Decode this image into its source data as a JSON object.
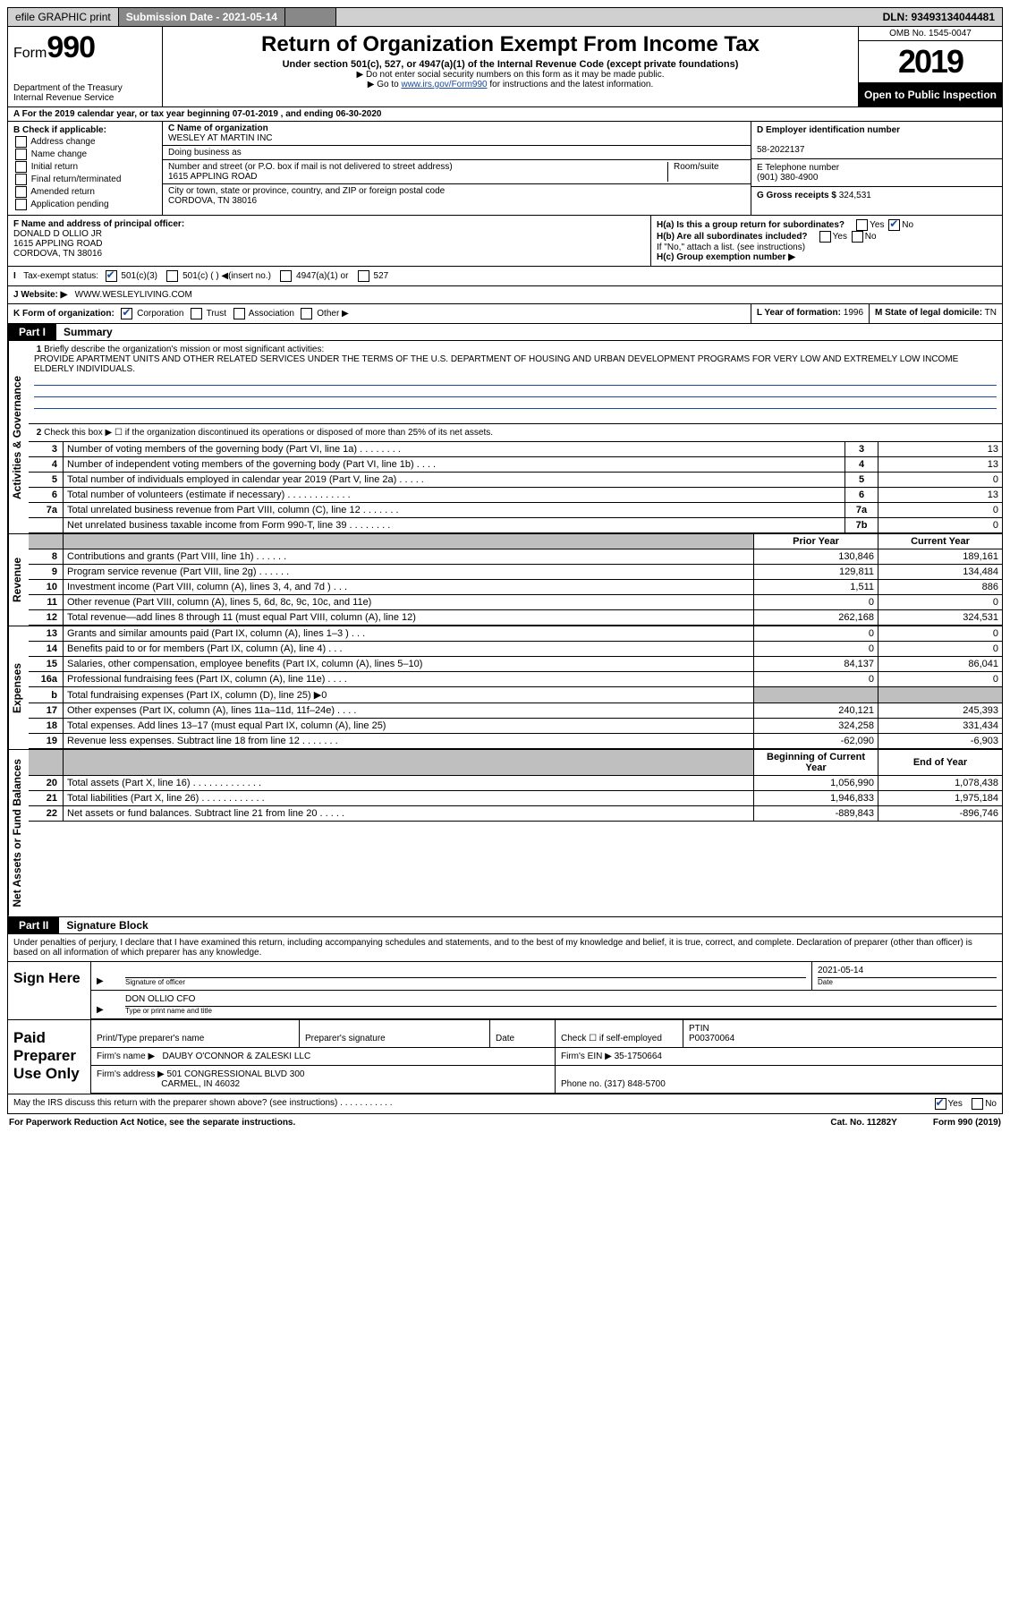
{
  "topbar": {
    "efile": "efile GRAPHIC print",
    "submission_label": "Submission Date - 2021-05-14",
    "dln": "DLN: 93493134044481"
  },
  "header": {
    "form_prefix": "Form",
    "form_number": "990",
    "dept": "Department of the Treasury",
    "irs": "Internal Revenue Service",
    "title": "Return of Organization Exempt From Income Tax",
    "subtitle": "Under section 501(c), 527, or 4947(a)(1) of the Internal Revenue Code (except private foundations)",
    "note1": "▶ Do not enter social security numbers on this form as it may be made public.",
    "note2_pre": "▶ Go to ",
    "note2_link": "www.irs.gov/Form990",
    "note2_post": " for instructions and the latest information.",
    "omb": "OMB No. 1545-0047",
    "year": "2019",
    "open": "Open to Public Inspection"
  },
  "row_a": "A For the 2019 calendar year, or tax year beginning 07-01-2019    , and ending 06-30-2020",
  "col_b": {
    "title": "B Check if applicable:",
    "items": [
      "Address change",
      "Name change",
      "Initial return",
      "Final return/terminated",
      "Amended return",
      "Application pending"
    ]
  },
  "c": {
    "name_lbl": "C Name of organization",
    "name": "WESLEY AT MARTIN INC",
    "dba_lbl": "Doing business as",
    "addr_lbl": "Number and street (or P.O. box if mail is not delivered to street address)",
    "room_lbl": "Room/suite",
    "addr": "1615 APPLING ROAD",
    "city_lbl": "City or town, state or province, country, and ZIP or foreign postal code",
    "city": "CORDOVA, TN  38016"
  },
  "d": {
    "lbl": "D Employer identification number",
    "val": "58-2022137"
  },
  "e": {
    "lbl": "E Telephone number",
    "val": "(901) 380-4900"
  },
  "g": {
    "lbl": "G Gross receipts $",
    "val": "324,531"
  },
  "f": {
    "lbl": "F  Name and address of principal officer:",
    "name": "DONALD D OLLIO JR",
    "addr1": "1615 APPLING ROAD",
    "addr2": "CORDOVA, TN  38016"
  },
  "h": {
    "a_lbl": "H(a)  Is this a group return for subordinates?",
    "a_yes": "Yes",
    "a_no": "No",
    "b_lbl": "H(b)  Are all subordinates included?",
    "b_yes": "Yes",
    "b_no": "No",
    "b_note": "If \"No,\" attach a list. (see instructions)",
    "c_lbl": "H(c)  Group exemption number ▶"
  },
  "i": {
    "lbl": "Tax-exempt status:",
    "opts": [
      "501(c)(3)",
      "501(c) (  ) ◀(insert no.)",
      "4947(a)(1) or",
      "527"
    ]
  },
  "j": {
    "lbl": "J   Website: ▶",
    "val": "WWW.WESLEYLIVING.COM"
  },
  "k": {
    "lbl": "K Form of organization:",
    "opts": [
      "Corporation",
      "Trust",
      "Association",
      "Other ▶"
    ]
  },
  "l": {
    "lbl": "L Year of formation:",
    "val": "1996"
  },
  "m": {
    "lbl": "M State of legal domicile:",
    "val": "TN"
  },
  "parts": {
    "p1_label": "Part I",
    "p1_title": "Summary",
    "p2_label": "Part II",
    "p2_title": "Signature Block"
  },
  "summary": {
    "line1_lbl": "Briefly describe the organization's mission or most significant activities:",
    "mission": "PROVIDE APARTMENT UNITS AND OTHER RELATED SERVICES UNDER THE TERMS OF THE U.S. DEPARTMENT OF HOUSING AND URBAN DEVELOPMENT PROGRAMS FOR VERY LOW AND EXTREMELY LOW INCOME ELDERLY INDIVIDUALS.",
    "line2": "Check this box ▶ ☐   if the organization discontinued its operations or disposed of more than 25% of its net assets.",
    "tabs": {
      "gov": "Activities & Governance",
      "rev": "Revenue",
      "exp": "Expenses",
      "net": "Net Assets or Fund Balances"
    },
    "cols": {
      "prior": "Prior Year",
      "current": "Current Year",
      "boy": "Beginning of Current Year",
      "eoy": "End of Year"
    },
    "gov_lines": [
      {
        "n": "3",
        "d": "Number of voting members of the governing body (Part VI, line 1a)   .    .    .    .    .    .    .    .",
        "b": "3",
        "v": "13"
      },
      {
        "n": "4",
        "d": "Number of independent voting members of the governing body (Part VI, line 1b)   .    .    .    .",
        "b": "4",
        "v": "13"
      },
      {
        "n": "5",
        "d": "Total number of individuals employed in calendar year 2019 (Part V, line 2a)   .    .    .    .    .",
        "b": "5",
        "v": "0"
      },
      {
        "n": "6",
        "d": "Total number of volunteers (estimate if necessary)    .    .    .    .    .    .    .    .    .    .    .    .",
        "b": "6",
        "v": "13"
      },
      {
        "n": "7a",
        "d": "Total unrelated business revenue from Part VIII, column (C), line 12   .    .    .    .    .    .    .",
        "b": "7a",
        "v": "0"
      },
      {
        "n": "",
        "d": "Net unrelated business taxable income from Form 990-T, line 39    .    .    .    .    .    .    .    .",
        "b": "7b",
        "v": "0"
      }
    ],
    "rev_lines": [
      {
        "n": "8",
        "d": "Contributions and grants (Part VIII, line 1h)    .    .    .    .    .    .",
        "p": "130,846",
        "c": "189,161"
      },
      {
        "n": "9",
        "d": "Program service revenue (Part VIII, line 2g)    .    .    .    .    .    .",
        "p": "129,811",
        "c": "134,484"
      },
      {
        "n": "10",
        "d": "Investment income (Part VIII, column (A), lines 3, 4, and 7d )    .    .    .",
        "p": "1,511",
        "c": "886"
      },
      {
        "n": "11",
        "d": "Other revenue (Part VIII, column (A), lines 5, 6d, 8c, 9c, 10c, and 11e)",
        "p": "0",
        "c": "0"
      },
      {
        "n": "12",
        "d": "Total revenue—add lines 8 through 11 (must equal Part VIII, column (A), line 12)",
        "p": "262,168",
        "c": "324,531"
      }
    ],
    "exp_lines": [
      {
        "n": "13",
        "d": "Grants and similar amounts paid (Part IX, column (A), lines 1–3 )   .    .    .",
        "p": "0",
        "c": "0"
      },
      {
        "n": "14",
        "d": "Benefits paid to or for members (Part IX, column (A), line 4)   .    .    .",
        "p": "0",
        "c": "0"
      },
      {
        "n": "15",
        "d": "Salaries, other compensation, employee benefits (Part IX, column (A), lines 5–10)",
        "p": "84,137",
        "c": "86,041"
      },
      {
        "n": "16a",
        "d": "Professional fundraising fees (Part IX, column (A), line 11e)   .    .    .    .",
        "p": "0",
        "c": "0"
      },
      {
        "n": "b",
        "d": "Total fundraising expenses (Part IX, column (D), line 25) ▶0",
        "p": "",
        "c": "",
        "grey": true
      },
      {
        "n": "17",
        "d": "Other expenses (Part IX, column (A), lines 11a–11d, 11f–24e)   .    .    .    .",
        "p": "240,121",
        "c": "245,393"
      },
      {
        "n": "18",
        "d": "Total expenses. Add lines 13–17 (must equal Part IX, column (A), line 25)",
        "p": "324,258",
        "c": "331,434"
      },
      {
        "n": "19",
        "d": "Revenue less expenses. Subtract line 18 from line 12  .    .    .    .    .    .    .",
        "p": "-62,090",
        "c": "-6,903"
      }
    ],
    "net_lines": [
      {
        "n": "20",
        "d": "Total assets (Part X, line 16)  .    .    .    .    .    .    .    .    .    .    .    .    .",
        "p": "1,056,990",
        "c": "1,078,438"
      },
      {
        "n": "21",
        "d": "Total liabilities (Part X, line 26)  .    .    .    .    .    .    .    .    .    .    .    .",
        "p": "1,946,833",
        "c": "1,975,184"
      },
      {
        "n": "22",
        "d": "Net assets or fund balances. Subtract line 21 from line 20  .    .    .    .    .",
        "p": "-889,843",
        "c": "-896,746"
      }
    ]
  },
  "sig": {
    "decl": "Under penalties of perjury, I declare that I have examined this return, including accompanying schedules and statements, and to the best of my knowledge and belief, it is true, correct, and complete. Declaration of preparer (other than officer) is based on all information of which preparer has any knowledge.",
    "sign_here": "Sign Here",
    "sig_officer_lbl": "Signature of officer",
    "date_lbl": "Date",
    "date_val": "2021-05-14",
    "name_title": "DON OLLIO CFO",
    "name_title_lbl": "Type or print name and title",
    "paid": "Paid Preparer Use Only",
    "prep_name_lbl": "Print/Type preparer's name",
    "prep_sig_lbl": "Preparer's signature",
    "prep_date_lbl": "Date",
    "check_lbl": "Check ☐  if self-employed",
    "ptin_lbl": "PTIN",
    "ptin": "P00370064",
    "firm_name_lbl": "Firm's name    ▶",
    "firm_name": "DAUBY O'CONNOR & ZALESKI LLC",
    "firm_ein_lbl": "Firm's EIN ▶",
    "firm_ein": "35-1750664",
    "firm_addr_lbl": "Firm's address ▶",
    "firm_addr1": "501 CONGRESSIONAL BLVD 300",
    "firm_addr2": "CARMEL, IN  46032",
    "phone_lbl": "Phone no.",
    "phone": "(317) 848-5700",
    "discuss": "May the IRS discuss this return with the preparer shown above? (see instructions)   .    .    .    .    .    .    .    .    .    .    .",
    "discuss_yes": "Yes",
    "discuss_no": "No"
  },
  "footer": {
    "left": "For Paperwork Reduction Act Notice, see the separate instructions.",
    "mid": "Cat. No. 11282Y",
    "right": "Form 990 (2019)"
  }
}
